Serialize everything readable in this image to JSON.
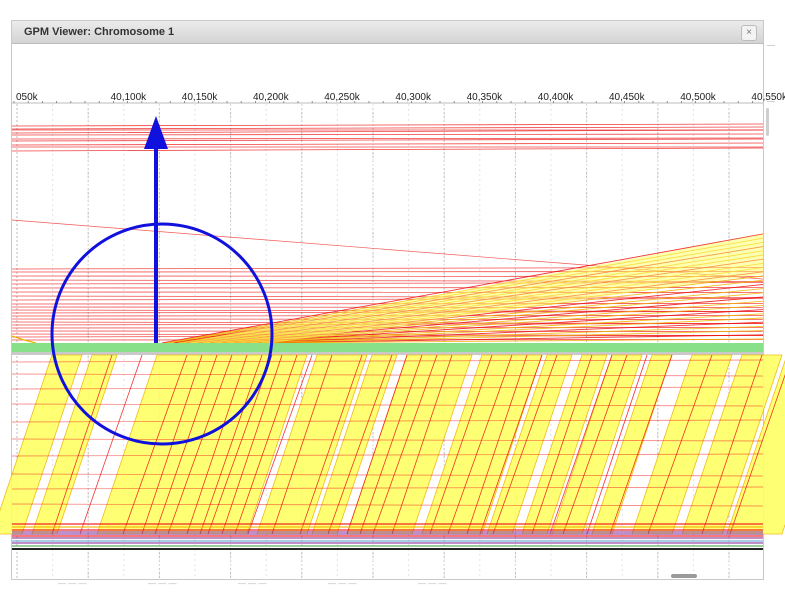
{
  "window": {
    "title": "GPM Viewer: Chromosome 1",
    "close_glyph": "×",
    "close_icon": "close-icon"
  },
  "ruler": {
    "ticks": [
      "050k",
      "40,100k",
      "40,150k",
      "40,200k",
      "40,250k",
      "40,300k",
      "40,350k",
      "40,400k",
      "40,450k",
      "40,500k",
      "40,550k"
    ]
  },
  "annotation": {
    "shapes": [
      "circle",
      "arrow-up"
    ],
    "color": "#1111dd"
  },
  "colors": {
    "alignment_line": "#ee1111",
    "alignment_fill": "#ffff66",
    "alignment_edge": "#f2b400",
    "reference_track": "#88e088",
    "track_bottom": "#8a3aa0",
    "annotation": "#1111dd"
  }
}
